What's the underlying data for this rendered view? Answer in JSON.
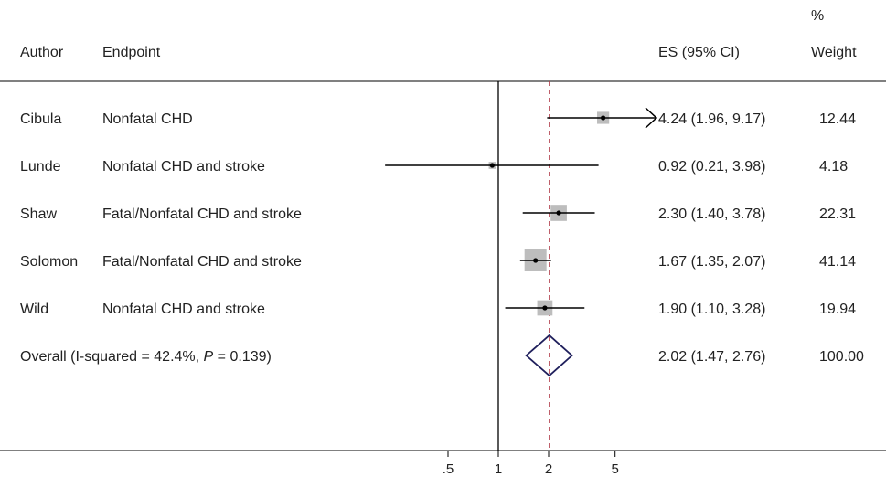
{
  "header": {
    "author_label": "Author",
    "endpoint_label": "Endpoint",
    "es_label": "ES (95% CI)",
    "weight_label_line1": "%",
    "weight_label_line2": "Weight"
  },
  "overall": {
    "prefix": "Overall  (I-squared = 42.4%, ",
    "p_symbol": "P",
    "suffix": " = 0.139)"
  },
  "chart_data": {
    "type": "forest",
    "xscale": "log",
    "reference_line": 1,
    "overall_line": 2.02,
    "xticks": [
      0.5,
      1,
      2,
      5
    ],
    "xtick_labels": [
      ".5",
      "1",
      "2",
      "5"
    ],
    "studies": [
      {
        "author": "Cibula",
        "endpoint": "Nonfatal CHD",
        "es": 4.24,
        "lo": 1.96,
        "hi": 9.17,
        "es_text": "4.24 (1.96, 9.17)",
        "weight": 12.44,
        "weight_text": "12.44",
        "arrow_right": true
      },
      {
        "author": "Lunde",
        "endpoint": "Nonfatal CHD and stroke",
        "es": 0.92,
        "lo": 0.21,
        "hi": 3.98,
        "es_text": "0.92 (0.21, 3.98)",
        "weight": 4.18,
        "weight_text": "4.18",
        "arrow_right": false
      },
      {
        "author": "Shaw",
        "endpoint": "Fatal/Nonfatal CHD and stroke",
        "es": 2.3,
        "lo": 1.4,
        "hi": 3.78,
        "es_text": "2.30 (1.40, 3.78)",
        "weight": 22.31,
        "weight_text": "22.31",
        "arrow_right": false
      },
      {
        "author": "Solomon",
        "endpoint": "Fatal/Nonfatal CHD and stroke",
        "es": 1.67,
        "lo": 1.35,
        "hi": 2.07,
        "es_text": "1.67 (1.35, 2.07)",
        "weight": 41.14,
        "weight_text": "41.14",
        "arrow_right": false
      },
      {
        "author": "Wild",
        "endpoint": "Nonfatal CHD and stroke",
        "es": 1.9,
        "lo": 1.1,
        "hi": 3.28,
        "es_text": "1.90 (1.10, 3.28)",
        "weight": 19.94,
        "weight_text": "19.94",
        "arrow_right": false
      }
    ],
    "pooled": {
      "es": 2.02,
      "lo": 1.47,
      "hi": 2.76,
      "es_text": "2.02 (1.47, 2.76)",
      "weight": 100.0,
      "weight_text": "100.00"
    },
    "colors": {
      "square": "#bdbdbd",
      "diamond": "#1f1f5c",
      "overall_line": "#b03a48",
      "line": "#000000"
    }
  }
}
